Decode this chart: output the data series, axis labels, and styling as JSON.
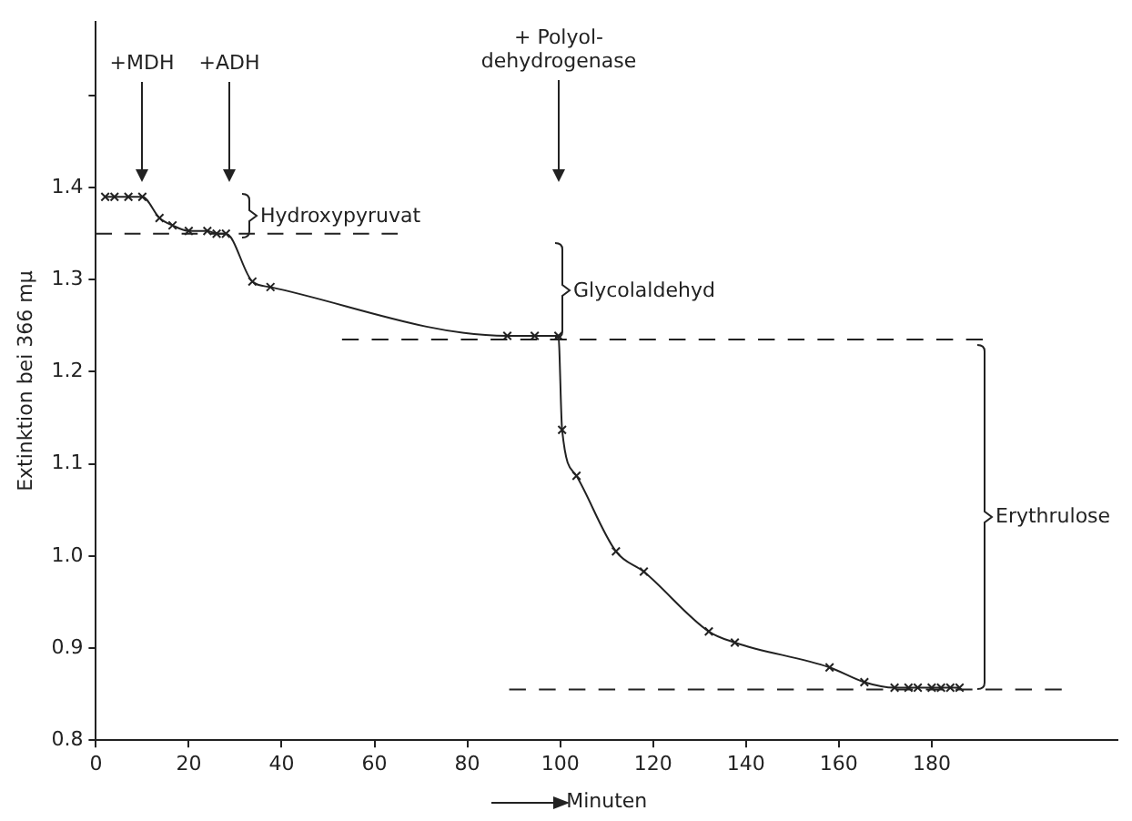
{
  "chart_data": {
    "type": "line",
    "xlabel": "Minuten",
    "ylabel": "Extinktion bei 366 mμ",
    "xlim": [
      0,
      220
    ],
    "ylim": [
      0.8,
      1.58
    ],
    "xticks": [
      0,
      20,
      40,
      60,
      80,
      100,
      120,
      140,
      160,
      180
    ],
    "yticks": [
      0.8,
      0.9,
      {
        "value": 1.0,
        "label": "1.0"
      },
      1.1,
      1.2,
      1.3,
      1.4,
      {
        "value": 1.5,
        "label": null
      }
    ],
    "grid": false,
    "legend": false,
    "series": [
      {
        "color": "#222222",
        "marker": "cross",
        "line_style": "solid",
        "x": [
          2,
          4,
          7,
          10,
          13.7,
          16.5,
          20,
          24,
          26,
          28,
          33.7,
          37.6,
          88.6,
          94.5,
          99.6,
          100.4,
          103.5,
          112,
          118,
          132,
          137.6,
          158,
          165.5,
          172,
          175,
          177,
          180,
          182,
          184,
          186
        ],
        "values": [
          1.39,
          1.39,
          1.39,
          1.39,
          1.367,
          1.359,
          1.353,
          1.353,
          1.35,
          1.35,
          1.298,
          1.292,
          1.239,
          1.239,
          1.239,
          1.137,
          1.087,
          1.005,
          0.983,
          0.918,
          0.906,
          0.879,
          0.863,
          0.857,
          0.857,
          0.857,
          0.857,
          0.857,
          0.857,
          0.857
        ]
      },
      {
        "color": "#222222",
        "marker": "none",
        "line_style": "dashed",
        "x": [
          0,
          65
        ],
        "values": [
          1.35,
          1.35
        ]
      },
      {
        "color": "#222222",
        "marker": "none",
        "line_style": "dashed",
        "x": [
          53,
          191
        ],
        "values": [
          1.235,
          1.235
        ]
      },
      {
        "color": "#222222",
        "marker": "none",
        "line_style": "dashed",
        "x": [
          89,
          208
        ],
        "values": [
          0.855,
          0.855
        ]
      }
    ],
    "annotations": [
      "+MDH",
      "+ADH",
      "+ Polyol-\ndehydrogenase",
      "Hydroxypyruvat",
      "Glycolaldehyd",
      "Erythrulose"
    ]
  }
}
